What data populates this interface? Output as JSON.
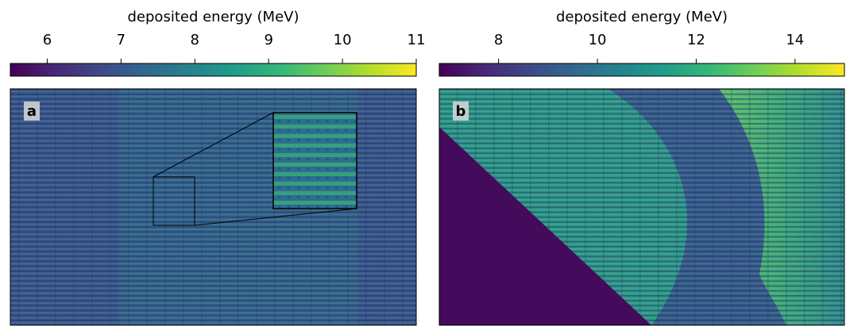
{
  "chart_data": [
    {
      "type": "heatmap",
      "panel_label": "a",
      "colorbar_label": "deposited energy (MeV)",
      "colormap": "viridis",
      "clim": [
        5.5,
        11
      ],
      "cticks": [
        6,
        7,
        8,
        9,
        10,
        11
      ]
    },
    {
      "type": "heatmap",
      "panel_label": "b",
      "colorbar_label": "deposited energy (MeV)",
      "colormap": "viridis",
      "clim": [
        6.8,
        15
      ],
      "cticks": [
        8,
        10,
        12,
        14
      ]
    }
  ]
}
